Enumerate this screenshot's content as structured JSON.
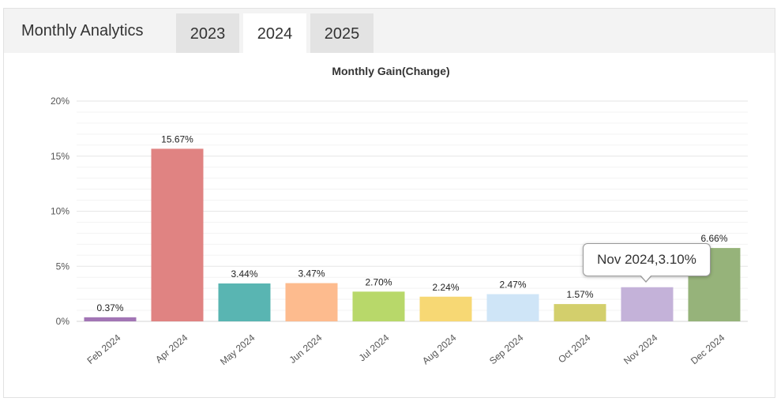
{
  "header": {
    "title": "Monthly Analytics",
    "tabs": [
      {
        "label": "2023",
        "active": false
      },
      {
        "label": "2024",
        "active": true
      },
      {
        "label": "2025",
        "active": false
      }
    ]
  },
  "tooltip": {
    "text": "Nov 2024,3.10%"
  },
  "chart_data": {
    "type": "bar",
    "title": "Monthly Gain(Change)",
    "xlabel": "",
    "ylabel": "",
    "ylim": [
      0,
      20
    ],
    "yticks": [
      "0%",
      "5%",
      "10%",
      "15%",
      "20%"
    ],
    "grid": true,
    "categories": [
      "Feb 2024",
      "Apr 2024",
      "May 2024",
      "Jun 2024",
      "Jul 2024",
      "Aug 2024",
      "Sep 2024",
      "Oct 2024",
      "Nov 2024",
      "Dec 2024"
    ],
    "values": [
      0.37,
      15.67,
      3.44,
      3.47,
      2.7,
      2.24,
      2.47,
      1.57,
      3.1,
      6.66
    ],
    "data_labels": [
      "0.37%",
      "15.67%",
      "3.44%",
      "3.47%",
      "2.70%",
      "2.24%",
      "2.47%",
      "1.57%",
      "",
      "6.66%"
    ],
    "colors": [
      "#a275b5",
      "#e08382",
      "#59b5b2",
      "#fdbb8e",
      "#b8d86a",
      "#f7d874",
      "#cfe5f7",
      "#d3cf6c",
      "#c4b2d9",
      "#96b37a"
    ]
  }
}
